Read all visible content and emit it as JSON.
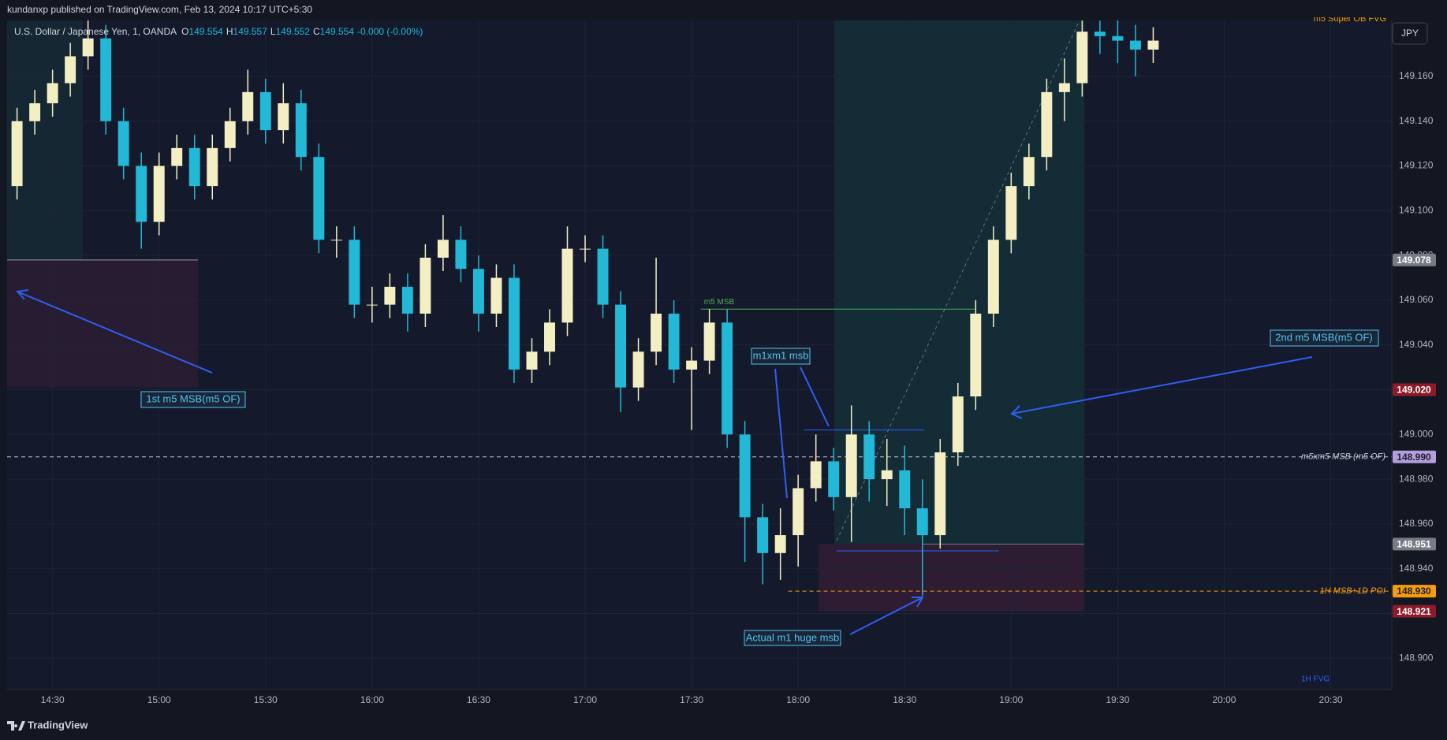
{
  "header": {
    "publisher": "kundanxp published on TradingView.com, Feb 13, 2024 10:17 UTC+5:30",
    "symbol": "U.S. Dollar / Japanese Yen, 1, OANDA",
    "ohlc": [
      [
        "O",
        "149.554"
      ],
      [
        "H",
        "149.557"
      ],
      [
        "L",
        "149.552"
      ],
      [
        "C",
        "149.554"
      ]
    ],
    "change": "-0.000 (-0.00%)",
    "currency": "JPY",
    "brand": "TradingView",
    "indicator": "m5 Super OB FVG"
  },
  "annotations": {
    "first": "1st m5 MSB(m5 OF)",
    "second": "2nd m5 MSB(m5 OF)",
    "m1": "m1xm1 msb",
    "huge": "Actual m1 huge msb",
    "fvg": "1H FVG"
  },
  "chart_data": {
    "type": "candlestick",
    "x": [
      860,
      865,
      870,
      875,
      880,
      885,
      890,
      895,
      900,
      905,
      910,
      915,
      920,
      925,
      930,
      935,
      940,
      945,
      950,
      955,
      960,
      965,
      970,
      975,
      980,
      985,
      990,
      995,
      1000,
      1005,
      1010,
      1015,
      1020,
      1025,
      1030,
      1035,
      1040,
      1045,
      1050,
      1055,
      1060,
      1065,
      1070,
      1075,
      1080,
      1085,
      1090,
      1095,
      1100,
      1105,
      1110,
      1115,
      1120,
      1125,
      1130,
      1135,
      1140,
      1145,
      1150,
      1155,
      1160,
      1165,
      1170,
      1175,
      1180
    ],
    "open": [
      149.111,
      149.14,
      149.148,
      149.157,
      149.169,
      149.177,
      149.14,
      149.12,
      149.095,
      149.12,
      149.128,
      149.111,
      149.128,
      149.14,
      149.153,
      149.136,
      149.148,
      149.124,
      149.087,
      149.087,
      149.058,
      149.058,
      149.066,
      149.054,
      149.079,
      149.087,
      149.074,
      149.054,
      149.07,
      149.029,
      149.037,
      149.05,
      149.083,
      149.083,
      149.058,
      149.021,
      149.037,
      149.054,
      149.029,
      149.033,
      149.05,
      149.0,
      148.963,
      148.947,
      148.955,
      148.976,
      148.988,
      148.972,
      149.0,
      148.98,
      148.984,
      148.967,
      148.955,
      148.992,
      149.017,
      149.054,
      149.087,
      149.111,
      149.124,
      149.153,
      149.157,
      149.18,
      149.178,
      149.176,
      149.172
    ],
    "high": [
      149.146,
      149.154,
      149.163,
      149.175,
      149.185,
      149.183,
      149.146,
      149.126,
      149.126,
      149.134,
      149.134,
      149.134,
      149.146,
      149.163,
      149.159,
      149.157,
      149.154,
      149.13,
      149.093,
      149.093,
      149.066,
      149.072,
      149.072,
      149.085,
      149.098,
      149.093,
      149.08,
      149.076,
      149.076,
      149.043,
      149.056,
      149.093,
      149.089,
      149.089,
      149.064,
      149.043,
      149.079,
      149.06,
      149.039,
      149.056,
      149.056,
      149.006,
      148.969,
      148.967,
      148.982,
      149.0,
      148.994,
      149.013,
      149.006,
      148.998,
      148.995,
      148.98,
      148.998,
      149.023,
      149.06,
      149.093,
      149.117,
      149.13,
      149.159,
      149.168,
      149.185,
      149.185,
      149.185,
      149.183,
      149.182
    ],
    "low": [
      149.105,
      149.134,
      149.142,
      149.151,
      149.163,
      149.134,
      149.114,
      149.083,
      149.089,
      149.114,
      149.105,
      149.105,
      149.122,
      149.134,
      149.13,
      149.13,
      149.118,
      149.081,
      149.079,
      149.052,
      149.05,
      149.052,
      149.046,
      149.048,
      149.073,
      149.068,
      149.046,
      149.048,
      149.023,
      149.023,
      149.031,
      149.044,
      149.077,
      149.052,
      149.01,
      149.015,
      149.031,
      149.023,
      149.002,
      149.027,
      148.994,
      148.943,
      148.933,
      148.935,
      148.941,
      148.97,
      148.966,
      148.952,
      148.97,
      148.968,
      148.955,
      148.928,
      148.949,
      148.986,
      149.011,
      149.048,
      149.081,
      149.105,
      149.118,
      149.14,
      149.151,
      149.17,
      149.166,
      149.16,
      149.166
    ],
    "close": [
      149.14,
      149.148,
      149.157,
      149.169,
      149.177,
      149.14,
      149.12,
      149.095,
      149.12,
      149.128,
      149.111,
      149.128,
      149.14,
      149.153,
      149.136,
      149.148,
      149.124,
      149.087,
      149.087,
      149.058,
      149.058,
      149.066,
      149.054,
      149.079,
      149.087,
      149.074,
      149.054,
      149.07,
      149.029,
      149.037,
      149.05,
      149.083,
      149.083,
      149.058,
      149.021,
      149.037,
      149.054,
      149.029,
      149.033,
      149.05,
      149.0,
      148.963,
      148.947,
      148.955,
      148.976,
      148.988,
      148.972,
      149.0,
      148.98,
      148.984,
      148.967,
      148.955,
      148.992,
      149.017,
      149.054,
      149.087,
      149.111,
      149.124,
      149.153,
      149.157,
      149.18,
      149.178,
      149.176,
      149.172,
      149.176
    ],
    "up_color": "#f3efc3",
    "down_color": "#22b8d6",
    "xlim": [
      857.2,
      1247.2
    ],
    "xticks": [
      {
        "value": 870,
        "label": "14:30"
      },
      {
        "value": 900,
        "label": "15:00"
      },
      {
        "value": 930,
        "label": "15:30"
      },
      {
        "value": 960,
        "label": "16:00"
      },
      {
        "value": 990,
        "label": "16:30"
      },
      {
        "value": 1020,
        "label": "17:00"
      },
      {
        "value": 1050,
        "label": "17:30"
      },
      {
        "value": 1080,
        "label": "18:00"
      },
      {
        "value": 1110,
        "label": "18:30"
      },
      {
        "value": 1140,
        "label": "19:00"
      },
      {
        "value": 1170,
        "label": "19:30"
      },
      {
        "value": 1200,
        "label": "20:00"
      },
      {
        "value": 1230,
        "label": "20:30"
      }
    ],
    "ylim": [
      148.886,
      149.185
    ],
    "yticks": [
      {
        "value": 148.9,
        "label": "148.900"
      },
      {
        "value": 148.92,
        "label": "148.920"
      },
      {
        "value": 148.94,
        "label": "148.940"
      },
      {
        "value": 148.96,
        "label": "148.960"
      },
      {
        "value": 148.98,
        "label": "148.980"
      },
      {
        "value": 149.0,
        "label": "149.000"
      },
      {
        "value": 149.02,
        "label": "149.020"
      },
      {
        "value": 149.04,
        "label": "149.040"
      },
      {
        "value": 149.06,
        "label": "149.060"
      },
      {
        "value": 149.08,
        "label": "149.080"
      },
      {
        "value": 149.1,
        "label": "149.100"
      },
      {
        "value": 149.12,
        "label": "149.120"
      },
      {
        "value": 149.14,
        "label": "149.140"
      },
      {
        "value": 149.16,
        "label": "149.160"
      }
    ],
    "grid": true,
    "zones": [
      {
        "from": 857.2,
        "to": 878.5,
        "top": 149.185,
        "bottom": 149.078,
        "color": "rgba(30,110,90,0.16)"
      },
      {
        "from": 857.2,
        "to": 911,
        "top": 149.078,
        "bottom": 149.021,
        "color": "rgba(130,40,70,0.18)"
      },
      {
        "from": 1090.2,
        "to": 1160.6,
        "top": 149.185,
        "bottom": 148.951,
        "color": "rgba(20,120,95,0.2)"
      },
      {
        "from": 1085.8,
        "to": 1160.6,
        "top": 148.951,
        "bottom": 148.921,
        "color": "rgba(130,40,70,0.24)"
      }
    ],
    "segments": [
      {
        "price": 149.078,
        "from": 857.2,
        "to": 911,
        "color": "#9598a1"
      },
      {
        "price": 149.056,
        "from": 1052.6,
        "to": 1129.7,
        "color": "#4caf50",
        "label": "m5 MSB",
        "label_at": "start"
      },
      {
        "price": 149.002,
        "from": 1081.7,
        "to": 1115.4,
        "color": "#2962ff"
      },
      {
        "price": 148.948,
        "from": 1090.8,
        "to": 1136.5,
        "color": "#2962ff"
      },
      {
        "price": 148.951,
        "from": 1114.9,
        "to": 1160.6,
        "color": "#787b86"
      },
      {
        "price": 148.99,
        "from": 857.2,
        "to": 1247.2,
        "color": "#c8cad3",
        "dash": true,
        "label": "m5xm5 MSB (m5 OF)",
        "label_at": "end"
      },
      {
        "price": 148.93,
        "from": 1077.2,
        "to": 1247.2,
        "color": "#f59d0c",
        "dash": true,
        "label": "1H MSB+1D POI",
        "label_at": "end"
      }
    ],
    "price_badges": [
      {
        "value": 149.078,
        "label": "149.078",
        "color": "#787b86",
        "text_color": "#ffffff"
      },
      {
        "value": 149.02,
        "label": "149.020",
        "color": "#8c1c2a",
        "text_color": "#ffffff"
      },
      {
        "value": 148.99,
        "label": "148.990",
        "color": "#b39ddb",
        "text_color": "#1e1e2e"
      },
      {
        "value": 148.951,
        "label": "148.951",
        "color": "#787b86",
        "text_color": "#ffffff"
      },
      {
        "value": 148.93,
        "label": "148.930",
        "color": "#f59d0c",
        "text_color": "#1e1e2e"
      },
      {
        "value": 148.921,
        "label": "148.921",
        "color": "#8c1c2a",
        "text_color": "#ffffff"
      }
    ]
  }
}
